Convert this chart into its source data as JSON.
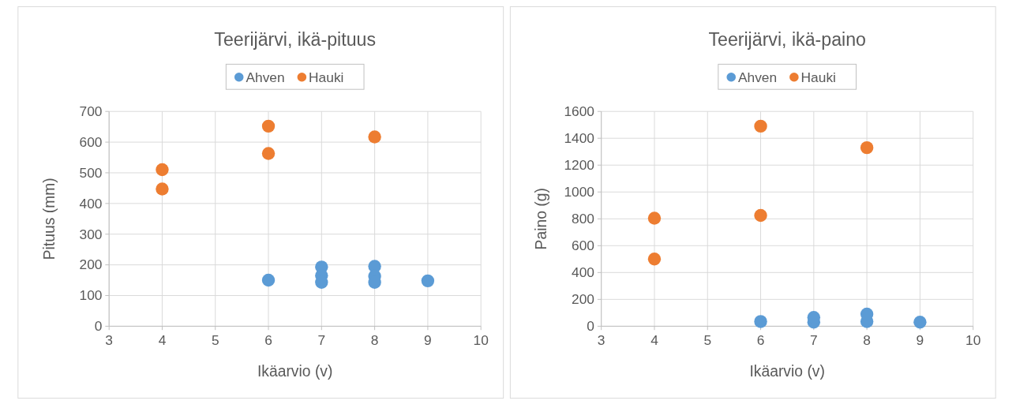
{
  "chart_data": [
    {
      "type": "scatter",
      "title": "Teerijärvi, ikä-pituus",
      "xlabel": "Ikäarvio (v)",
      "ylabel": "Pituus (mm)",
      "xlim": [
        3,
        10
      ],
      "xticks": [
        3,
        4,
        5,
        6,
        7,
        8,
        9,
        10
      ],
      "ylim": [
        0,
        700
      ],
      "yticks": [
        0,
        100,
        200,
        300,
        400,
        500,
        600,
        700
      ],
      "grid": true,
      "legend": "top",
      "marker": "circle",
      "series": [
        {
          "name": "Ahven",
          "color": "#5b9bd5",
          "x": [
            6,
            7,
            7,
            7,
            8,
            8,
            8,
            9
          ],
          "values": [
            150,
            193,
            165,
            143,
            195,
            163,
            143,
            148
          ]
        },
        {
          "name": "Hauki",
          "color": "#ed7d31",
          "x": [
            4,
            4,
            6,
            6,
            8
          ],
          "values": [
            510,
            447,
            652,
            563,
            617
          ]
        }
      ]
    },
    {
      "type": "scatter",
      "title": "Teerijärvi, ikä-paino",
      "xlabel": "Ikäarvio (v)",
      "ylabel": "Paino (g)",
      "xlim": [
        3,
        10
      ],
      "xticks": [
        3,
        4,
        5,
        6,
        7,
        8,
        9,
        10
      ],
      "ylim": [
        0,
        1600
      ],
      "yticks": [
        0,
        200,
        400,
        600,
        800,
        1000,
        1200,
        1400,
        1600
      ],
      "grid": true,
      "legend": "top",
      "marker": "circle",
      "series": [
        {
          "name": "Ahven",
          "color": "#5b9bd5",
          "x": [
            6,
            7,
            7,
            8,
            8,
            9
          ],
          "values": [
            35,
            30,
            65,
            35,
            90,
            30
          ]
        },
        {
          "name": "Hauki",
          "color": "#ed7d31",
          "x": [
            4,
            4,
            6,
            6,
            8
          ],
          "values": [
            805,
            500,
            1490,
            825,
            1330
          ]
        }
      ]
    }
  ]
}
